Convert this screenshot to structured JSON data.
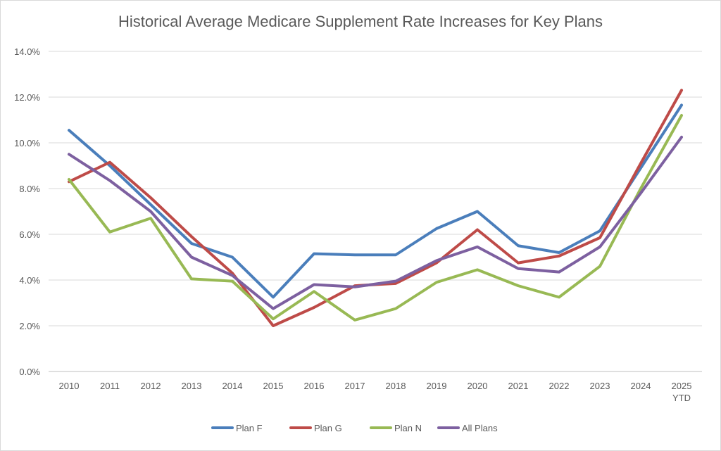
{
  "chart_data": {
    "type": "line",
    "title": "Historical Average Medicare Supplement Rate Increases for Key Plans",
    "xlabel": "",
    "ylabel": "",
    "categories": [
      "2010",
      "2011",
      "2012",
      "2013",
      "2014",
      "2015",
      "2016",
      "2017",
      "2018",
      "2019",
      "2020",
      "2021",
      "2022",
      "2023",
      "2024",
      "2025 YTD"
    ],
    "ylim": [
      0,
      14
    ],
    "yticks": [
      "0.0%",
      "2.0%",
      "4.0%",
      "6.0%",
      "8.0%",
      "10.0%",
      "12.0%",
      "14.0%"
    ],
    "grid": true,
    "legend_position": "bottom",
    "series": [
      {
        "name": "Plan F",
        "color": "#4a7ebb",
        "values": [
          10.55,
          9.0,
          7.3,
          5.6,
          5.0,
          3.25,
          5.15,
          5.1,
          5.1,
          6.25,
          7.0,
          5.5,
          5.2,
          6.15,
          8.9,
          11.65
        ]
      },
      {
        "name": "Plan G",
        "color": "#be4b48",
        "values": [
          8.3,
          9.15,
          7.6,
          5.9,
          4.3,
          2.0,
          2.8,
          3.75,
          3.85,
          4.75,
          6.2,
          4.75,
          5.05,
          5.85,
          9.1,
          12.3
        ]
      },
      {
        "name": "Plan N",
        "color": "#98b954",
        "values": [
          8.4,
          6.1,
          6.7,
          4.05,
          3.95,
          2.3,
          3.5,
          2.25,
          2.75,
          3.9,
          4.45,
          3.75,
          3.25,
          4.6,
          8.0,
          11.2
        ]
      },
      {
        "name": "All Plans",
        "color": "#7d60a0",
        "values": [
          9.5,
          8.35,
          7.0,
          5.0,
          4.2,
          2.75,
          3.8,
          3.7,
          3.95,
          4.85,
          5.45,
          4.5,
          4.35,
          5.45,
          7.8,
          10.25
        ]
      }
    ]
  }
}
